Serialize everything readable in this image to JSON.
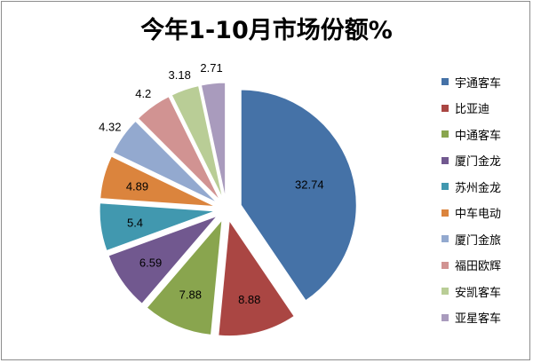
{
  "chart_data": {
    "type": "pie",
    "title": "今年1-10月市场份额%",
    "legend_position": "right",
    "exploded": true,
    "slices": [
      {
        "label": "宇通客车",
        "value": 32.74,
        "color": "#4572A7"
      },
      {
        "label": "比亚迪",
        "value": 8.88,
        "color": "#AA4643"
      },
      {
        "label": "中通客车",
        "value": 7.88,
        "color": "#89A54E"
      },
      {
        "label": "厦门金龙",
        "value": 6.59,
        "color": "#71588F"
      },
      {
        "label": "苏州金龙",
        "value": 5.4,
        "color": "#4198AF"
      },
      {
        "label": "中车电动",
        "value": 4.89,
        "color": "#DB843D"
      },
      {
        "label": "厦门金旅",
        "value": 4.32,
        "color": "#93A9CF"
      },
      {
        "label": "福田欧辉",
        "value": 4.2,
        "color": "#D19392"
      },
      {
        "label": "安凯客车",
        "value": 3.18,
        "color": "#B9CD96"
      },
      {
        "label": "亚星客车",
        "value": 2.71,
        "color": "#A99BBD"
      }
    ]
  }
}
